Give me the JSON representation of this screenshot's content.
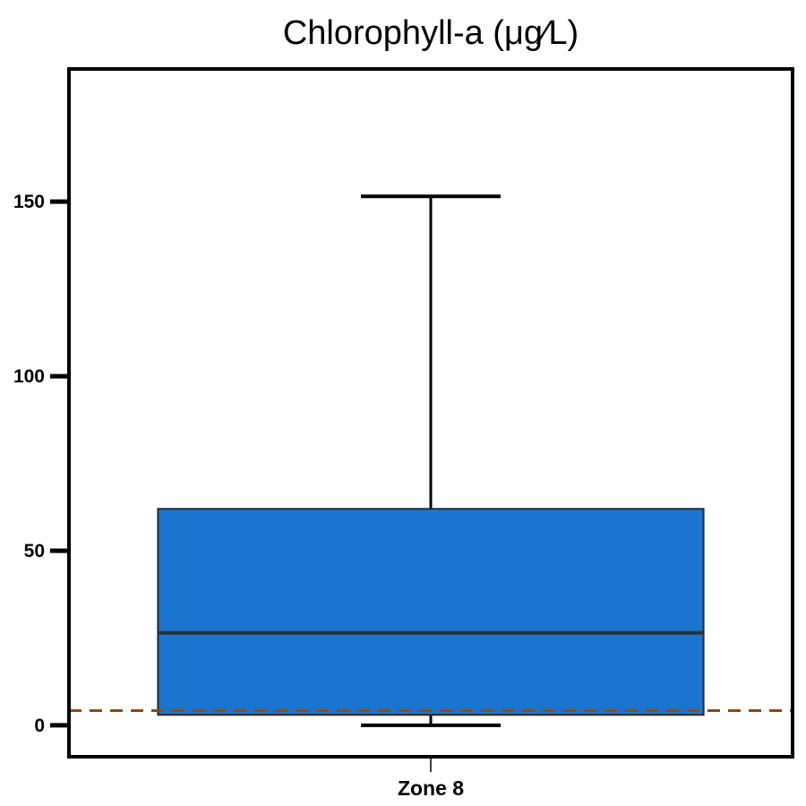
{
  "chart_data": {
    "type": "box",
    "title": "Chlorophyll-a (μg∕L)",
    "categories": [
      "Zone 8"
    ],
    "boxes": [
      {
        "category": "Zone 8",
        "whisker_low": 0,
        "q1": 3,
        "median": 26.5,
        "q3": 62,
        "whisker_high": 151.5
      }
    ],
    "reference_line": {
      "value": 4.2,
      "style": "dashed",
      "color": "#8B4A0C"
    },
    "yticks": [
      0,
      50,
      100,
      150
    ],
    "ylim": [
      -9,
      188
    ],
    "grid": false,
    "box_color": "#1B75CF",
    "median_color": "#2F2F2F"
  }
}
